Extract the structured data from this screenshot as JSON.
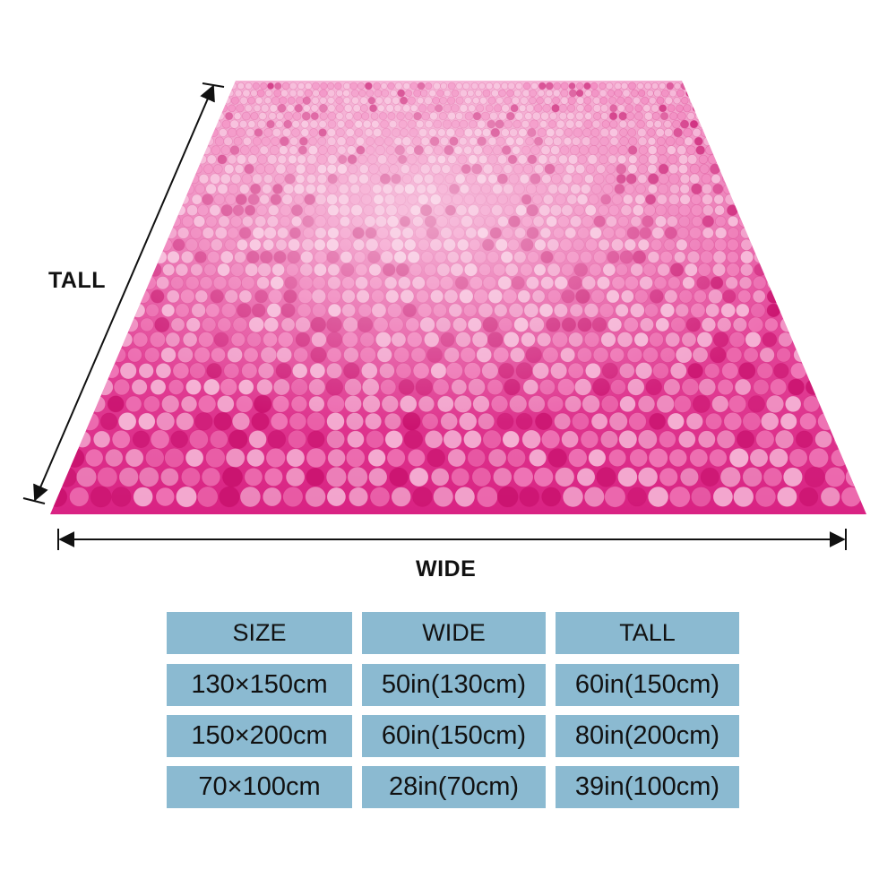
{
  "colors": {
    "rug_base": "#e0338f",
    "sequin_light": "#f6b8d8",
    "sequin_mid": "#f07ab8",
    "sequin_dark": "#c9126e",
    "table_cell": "#8bbad1",
    "arrow": "#111111"
  },
  "dimension_labels": {
    "tall": "TALL",
    "wide": "WIDE"
  },
  "table": {
    "headers": [
      "SIZE",
      "WIDE",
      "TALL"
    ],
    "rows": [
      [
        "130×150cm",
        "50in(130cm)",
        "60in(150cm)"
      ],
      [
        "150×200cm",
        "60in(150cm)",
        "80in(200cm)"
      ],
      [
        "70×100cm",
        "28in(70cm)",
        "39in(100cm)"
      ]
    ]
  }
}
